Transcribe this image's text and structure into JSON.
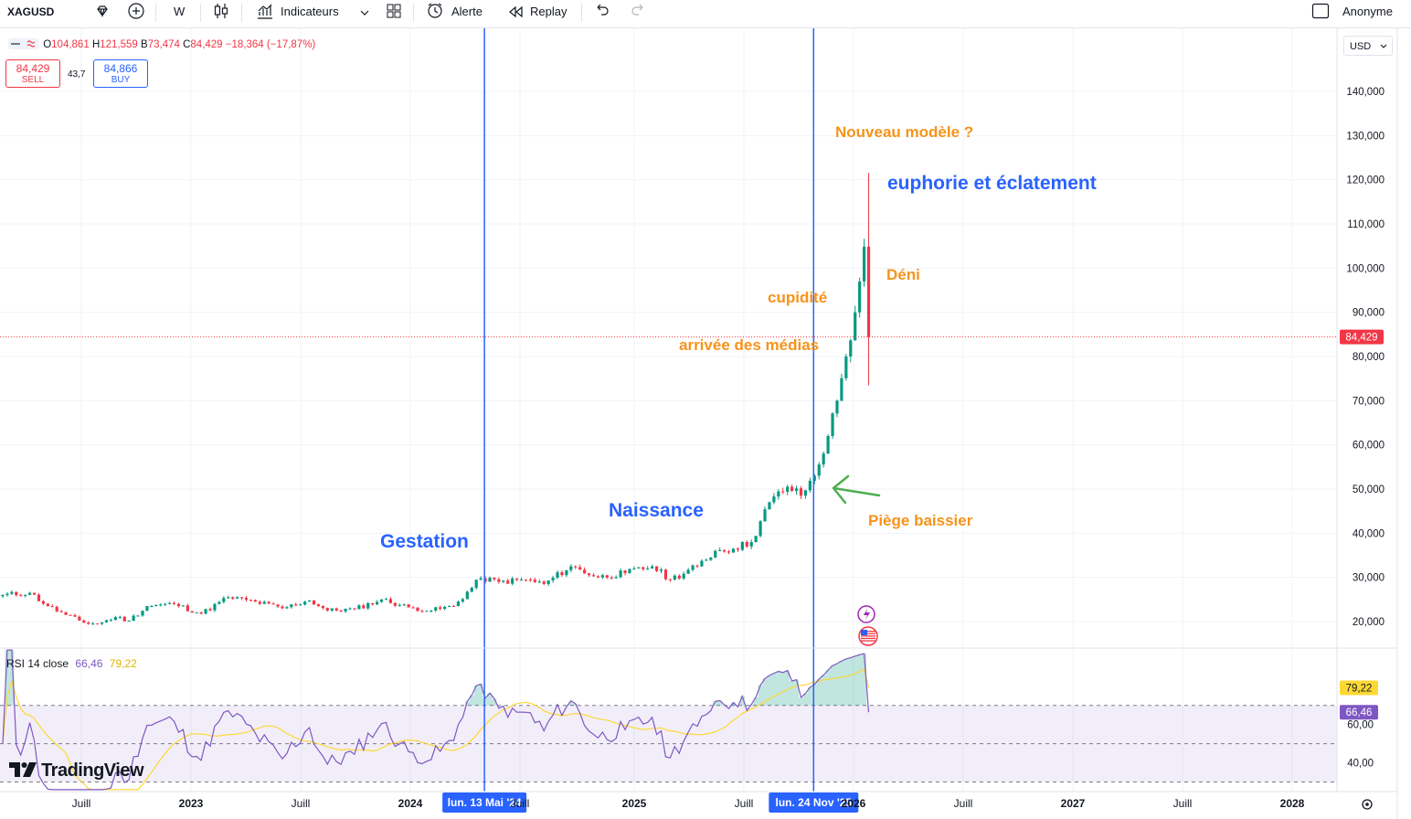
{
  "toolbar": {
    "symbol": "XAGUSD",
    "interval": "W",
    "indicators_label": "Indicateurs",
    "alert_label": "Alerte",
    "replay_label": "Replay",
    "user_label": "Anonyme"
  },
  "legend": {
    "o_label": "O",
    "o_value": "104,861",
    "h_label": "H",
    "h_value": "121,559",
    "b_label": "B",
    "b_value": "73,474",
    "c_label": "C",
    "c_value": "84,429",
    "change": "−18,364 (−17,87%)"
  },
  "trade": {
    "sell_price": "84,429",
    "sell_label": "SELL",
    "spread": "43,7",
    "buy_price": "84,866",
    "buy_label": "BUY"
  },
  "rsi": {
    "title": "RSI 14 close",
    "value": "66,46",
    "ma_value": "79,22"
  },
  "currency": "USD",
  "brand": "TradingView",
  "colors": {
    "up": "#089981",
    "down": "#f23645",
    "vline": "#2962ff",
    "annot_orange": "#f7931a",
    "annot_blue": "#2962ff",
    "rsi_line": "#7e57c2",
    "rsi_ma": "#fdd835"
  },
  "chart_data": {
    "type": "candlestick",
    "symbol": "XAGUSD",
    "interval": "W",
    "price_axis": {
      "ticks": [
        20000,
        30000,
        40000,
        50000,
        60000,
        70000,
        80000,
        90000,
        100000,
        110000,
        120000,
        130000,
        140000
      ],
      "tick_labels": [
        "20,000",
        "30,000",
        "40,000",
        "50,000",
        "60,000",
        "70,000",
        "80,000",
        "90,000",
        "100,000",
        "110,000",
        "120,000",
        "130,000",
        "140,000"
      ],
      "ylim": [
        15000,
        145000
      ],
      "last_price": 84.429,
      "last_price_label": "84,429"
    },
    "time_axis": {
      "tick_labels": [
        "Juill",
        "2023",
        "Juill",
        "2024",
        "Juill",
        "2025",
        "Juill",
        "2026",
        "Juill",
        "2027",
        "Juill",
        "2028"
      ]
    },
    "price_path_points": [
      [
        0,
        26.0
      ],
      [
        6,
        26.5
      ],
      [
        10,
        23.5
      ],
      [
        14,
        21.5
      ],
      [
        18,
        19.8
      ],
      [
        21,
        19.5
      ],
      [
        25,
        21.0
      ],
      [
        28,
        20.2
      ],
      [
        32,
        23.5
      ],
      [
        38,
        24.0
      ],
      [
        44,
        21.8
      ],
      [
        50,
        25.5
      ],
      [
        56,
        24.5
      ],
      [
        62,
        23.0
      ],
      [
        68,
        24.8
      ],
      [
        72,
        22.5
      ],
      [
        78,
        22.8
      ],
      [
        84,
        25.0
      ],
      [
        90,
        23.2
      ],
      [
        95,
        22.5
      ],
      [
        100,
        23.5
      ],
      [
        106,
        29.8
      ],
      [
        110,
        29.0
      ],
      [
        116,
        29.5
      ],
      [
        120,
        28.5
      ],
      [
        126,
        32.5
      ],
      [
        132,
        30.0
      ],
      [
        138,
        31.0
      ],
      [
        144,
        32.5
      ],
      [
        148,
        29.5
      ],
      [
        154,
        32.5
      ],
      [
        158,
        36.0
      ],
      [
        162,
        36.5
      ],
      [
        166,
        38.0
      ],
      [
        170,
        47.0
      ],
      [
        174,
        50.5
      ],
      [
        177,
        48.5
      ],
      [
        180,
        53.0
      ],
      [
        183,
        62.0
      ],
      [
        185,
        70.0
      ],
      [
        187,
        80.0
      ],
      [
        189,
        90.0
      ],
      [
        190,
        97.0
      ],
      [
        191,
        104.861
      ],
      [
        192,
        84.429
      ]
    ],
    "last_candle": {
      "open": 104.861,
      "high": 121.559,
      "low": 73.474,
      "close": 84.429
    },
    "markers": [
      {
        "label": "lun. 13 Mai '24",
        "index": 106
      },
      {
        "label": "lun. 24 Nov '25",
        "index": 180
      }
    ],
    "annotations": [
      {
        "text": "Nouveau modèle ?",
        "color": "orange"
      },
      {
        "text": "euphorie et éclatement",
        "color": "blue"
      },
      {
        "text": "Déni",
        "color": "orange"
      },
      {
        "text": "cupidité",
        "color": "orange"
      },
      {
        "text": "arrivée des médias",
        "color": "orange"
      },
      {
        "text": "Naissance",
        "color": "blue"
      },
      {
        "text": "Gestation",
        "color": "blue"
      },
      {
        "text": "Piège baissier",
        "color": "orange"
      }
    ],
    "rsi": {
      "period": 14,
      "source": "close",
      "last": 66.46,
      "ma_last": 79.22,
      "ticks": [
        40,
        60
      ],
      "tick_labels": [
        "40,00",
        "60,00"
      ],
      "bands": [
        30,
        50,
        70
      ],
      "ylim": [
        25,
        100
      ]
    }
  }
}
